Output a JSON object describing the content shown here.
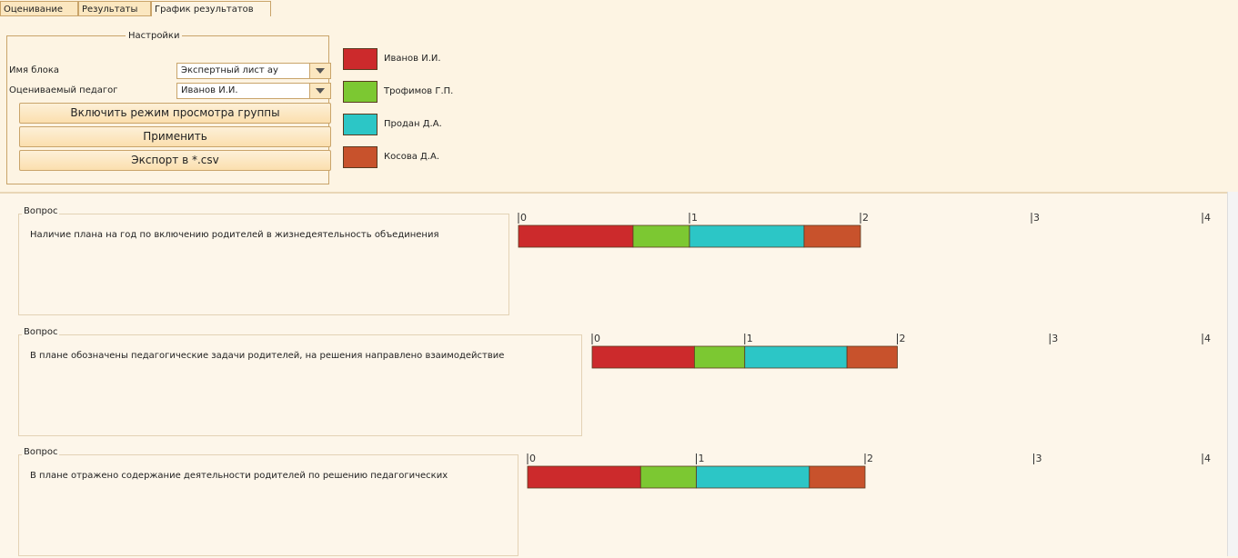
{
  "tabs": [
    "Оценивание",
    "Результаты",
    "График результатов"
  ],
  "settings": {
    "title": "Настройки",
    "fields": [
      {
        "label": "Имя блока",
        "value": "Экспертный лист ау"
      },
      {
        "label": "Оцениваемый педагог",
        "value": "Иванов И.И."
      }
    ],
    "buttons": [
      "Включить режим просмотра группы",
      "Применить",
      "Экспорт в *.csv"
    ]
  },
  "legend": [
    {
      "name": "Иванов И.И.",
      "color": "#cc2a2c"
    },
    {
      "name": "Трофимов Г.П.",
      "color": "#7cc832"
    },
    {
      "name": "Продан Д.А.",
      "color": "#2cc6c6"
    },
    {
      "name": "Косова Д.А.",
      "color": "#c8522c"
    }
  ],
  "axis": {
    "xlim": [
      0,
      4
    ],
    "ticks": [
      0,
      1,
      2,
      3,
      4
    ]
  },
  "questions": [
    {
      "label": "Вопрос",
      "text": "Наличие плана на год по включению родителей в жизнедеятельность объединения",
      "values": [
        0.67,
        0.33,
        0.67,
        0.33
      ]
    },
    {
      "label": "Вопрос",
      "text": "В плане обозначены педагогические задачи родителей, на решения направлено взаимодействие",
      "values": [
        0.67,
        0.33,
        0.67,
        0.33
      ]
    },
    {
      "label": "Вопрос",
      "text": "В плане отражено содержание деятельности родителей по решению педагогических",
      "values": [
        0.67,
        0.33,
        0.67,
        0.33
      ]
    }
  ]
}
